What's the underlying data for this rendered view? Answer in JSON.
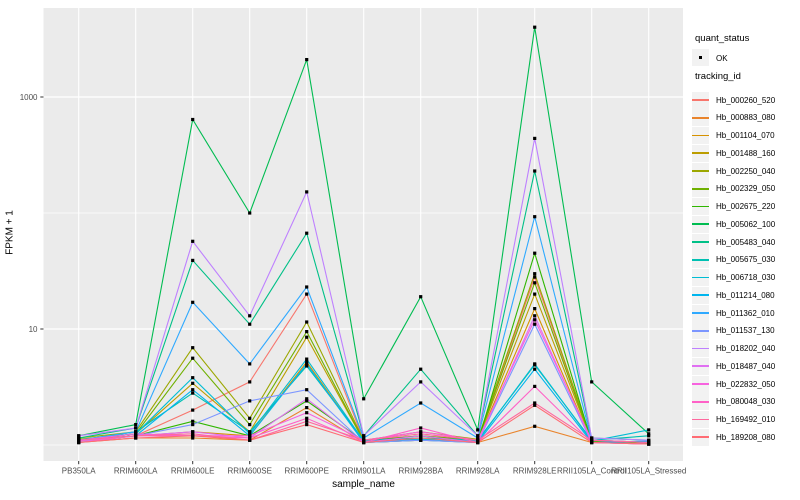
{
  "figure": {
    "panel_background": "#EBEBEB",
    "gridline_color": "#FFFFFF",
    "tick_color": "#333333",
    "tick_label_color": "#4D4D4D",
    "point_color": "#000000"
  },
  "legend": {
    "quant_status": {
      "title": "quant_status",
      "entries": [
        {
          "label": "OK",
          "symbol": "black-point"
        }
      ]
    },
    "tracking_id": {
      "title": "tracking_id"
    }
  },
  "chart_data": {
    "type": "line",
    "title": "",
    "xlabel": "sample_name",
    "ylabel": "FPKM + 1",
    "y_scale": "log10",
    "grid": true,
    "legend_position": "right",
    "y_ticks": [
      {
        "label": "1000",
        "value": 1000
      },
      {
        "label": "10",
        "value": 10
      }
    ],
    "minor_gridline_values": [
      100,
      1
    ],
    "ylim_approx": [
      0.75,
      5200
    ],
    "categories": [
      "PB350LA",
      "RRIM600LA",
      "RRIM600LE",
      "RRIM600SE",
      "RRIM600PE",
      "RRIM901LA",
      "RRIM928BA",
      "RRIM928LA",
      "RRIM928LE",
      "RRII105LA_Control",
      "RRII105LA_Stressed"
    ],
    "marker": {
      "shape": "square",
      "size": 3.2,
      "color": "#000000"
    },
    "series": [
      {
        "name": "Hb_000260_520",
        "color": "#F8766D",
        "values": [
          1.1,
          1.2,
          2.0,
          3.5,
          20,
          1.1,
          1.2,
          1.1,
          28,
          1.1,
          1.05
        ]
      },
      {
        "name": "Hb_000883_080",
        "color": "#E9842C",
        "values": [
          1.05,
          1.15,
          1.15,
          1.1,
          2.1,
          1.05,
          1.1,
          1.05,
          1.45,
          1.05,
          1.02
        ]
      },
      {
        "name": "Hb_001104_070",
        "color": "#D69200",
        "values": [
          1.08,
          1.2,
          1.3,
          1.2,
          5.2,
          1.05,
          1.1,
          1.08,
          15,
          1.06,
          1.02
        ]
      },
      {
        "name": "Hb_001488_160",
        "color": "#BC9D00",
        "values": [
          1.1,
          1.25,
          3.4,
          1.3,
          8.5,
          1.08,
          1.15,
          1.1,
          20,
          1.08,
          1.04
        ]
      },
      {
        "name": "Hb_002250_040",
        "color": "#9CA700",
        "values": [
          1.15,
          1.3,
          6.9,
          1.7,
          11.5,
          1.1,
          1.3,
          1.12,
          30,
          1.1,
          1.05
        ]
      },
      {
        "name": "Hb_002329_050",
        "color": "#6FB000",
        "values": [
          1.12,
          1.25,
          5.6,
          1.5,
          9.5,
          1.08,
          1.2,
          1.1,
          25,
          1.08,
          1.04
        ]
      },
      {
        "name": "Hb_002675_220",
        "color": "#2FB600",
        "values": [
          1.1,
          1.2,
          1.6,
          1.2,
          2.4,
          1.08,
          1.2,
          1.05,
          45,
          1.06,
          1.02
        ]
      },
      {
        "name": "Hb_005062_100",
        "color": "#00BC51",
        "values": [
          1.2,
          1.5,
          640,
          100,
          2100,
          2.5,
          19,
          1.35,
          4000,
          3.5,
          1.25
        ]
      },
      {
        "name": "Hb_005483_040",
        "color": "#00C087",
        "values": [
          1.15,
          1.4,
          39,
          11,
          67,
          1.2,
          4.5,
          1.2,
          230,
          1.15,
          1.1
        ]
      },
      {
        "name": "Hb_005675_030",
        "color": "#00C0B2",
        "values": [
          1.1,
          1.3,
          2.8,
          1.3,
          4.8,
          1.1,
          1.15,
          1.1,
          4.9,
          1.1,
          1.2
        ]
      },
      {
        "name": "Hb_006718_030",
        "color": "#00BDD3",
        "values": [
          1.1,
          1.25,
          3.8,
          1.25,
          5.5,
          1.08,
          1.12,
          1.08,
          5.0,
          1.08,
          1.35
        ]
      },
      {
        "name": "Hb_011214_080",
        "color": "#00B5EE",
        "values": [
          1.05,
          1.2,
          3.0,
          1.2,
          5.0,
          1.05,
          1.1,
          1.05,
          4.5,
          1.05,
          1.08
        ]
      },
      {
        "name": "Hb_011362_010",
        "color": "#2FA9FF",
        "values": [
          1.1,
          1.3,
          17,
          5.0,
          23,
          1.15,
          2.3,
          1.15,
          93,
          1.1,
          1.05
        ]
      },
      {
        "name": "Hb_011537_130",
        "color": "#7C96FF",
        "values": [
          1.05,
          1.2,
          1.5,
          2.4,
          3.0,
          1.05,
          1.1,
          1.05,
          11,
          1.05,
          1.02
        ]
      },
      {
        "name": "Hb_018202_040",
        "color": "#BE80FF",
        "values": [
          1.2,
          1.4,
          57,
          13,
          152,
          1.2,
          3.5,
          1.2,
          440,
          1.15,
          1.1
        ]
      },
      {
        "name": "Hb_018487_040",
        "color": "#E06FF2",
        "values": [
          1.08,
          1.2,
          1.3,
          1.15,
          2.5,
          1.05,
          1.2,
          1.05,
          13,
          1.05,
          1.02
        ]
      },
      {
        "name": "Hb_022832_050",
        "color": "#F763DF",
        "values": [
          1.1,
          1.25,
          1.2,
          1.2,
          1.9,
          1.1,
          1.3,
          1.1,
          12,
          1.1,
          1.05
        ]
      },
      {
        "name": "Hb_080048_030",
        "color": "#FF61C7",
        "values": [
          1.05,
          1.2,
          1.2,
          1.15,
          1.7,
          1.05,
          1.4,
          1.05,
          3.2,
          1.05,
          1.02
        ]
      },
      {
        "name": "Hb_169492_010",
        "color": "#FF689E",
        "values": [
          1.1,
          1.2,
          1.25,
          1.1,
          1.6,
          1.1,
          1.25,
          1.1,
          2.3,
          1.1,
          1.05
        ]
      },
      {
        "name": "Hb_189208_080",
        "color": "#FF6C74",
        "values": [
          1.05,
          1.15,
          1.2,
          1.1,
          1.5,
          1.05,
          1.15,
          1.05,
          2.2,
          1.05,
          1.02
        ]
      }
    ]
  }
}
